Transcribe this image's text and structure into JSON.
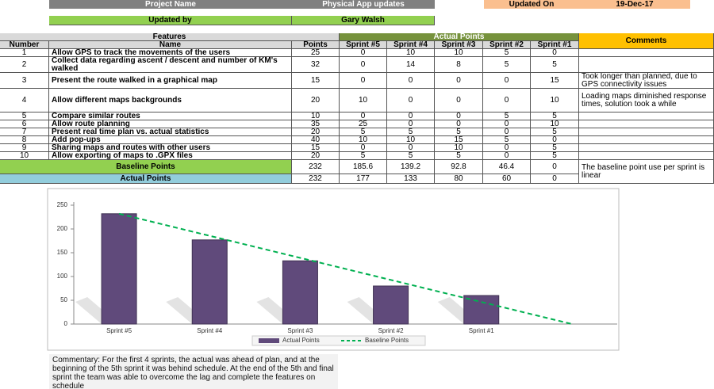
{
  "header": {
    "project_label": "Project Name",
    "project_name": "Physical App updates",
    "updated_on_label": "Updated On",
    "updated_on": "19-Dec-17",
    "updated_by_label": "Updated by",
    "updated_by": "Gary Walsh"
  },
  "table": {
    "group_headers": {
      "features": "Features",
      "actual": "Actual Points",
      "comments": "Comments"
    },
    "columns": [
      "Number",
      "Name",
      "Points",
      "Sprint #5",
      "Sprint #4",
      "Sprint #3",
      "Sprint #2",
      "Sprint #1"
    ],
    "rows": [
      {
        "number": 1,
        "name": "Allow GPS to track the movements of the users",
        "points": 25,
        "sprints": [
          0,
          10,
          10,
          5,
          0
        ]
      },
      {
        "number": 2,
        "name": "Collect data regarding ascent / descent and number of KM's walked",
        "points": 32,
        "sprints": [
          0,
          14,
          8,
          5,
          5
        ]
      },
      {
        "number": 3,
        "name": "Present the route walked in a graphical map",
        "points": 15,
        "sprints": [
          0,
          0,
          0,
          0,
          15
        ],
        "comment": "Took longer than planned, due to GPS connectivity issues"
      },
      {
        "number": 4,
        "name": "Allow different maps backgrounds",
        "points": 20,
        "sprints": [
          10,
          0,
          0,
          0,
          10
        ],
        "comment": "Loading maps diminished response times, solution took a while"
      },
      {
        "number": 5,
        "name": "Compare similar routes",
        "points": 10,
        "sprints": [
          0,
          0,
          0,
          5,
          5
        ]
      },
      {
        "number": 6,
        "name": "Allow route planning",
        "points": 35,
        "sprints": [
          25,
          0,
          0,
          0,
          10
        ]
      },
      {
        "number": 7,
        "name": "Present real time plan vs. actual statistics",
        "points": 20,
        "sprints": [
          5,
          5,
          5,
          0,
          5
        ]
      },
      {
        "number": 8,
        "name": "Add pop-ups",
        "points": 40,
        "sprints": [
          10,
          10,
          15,
          5,
          0
        ]
      },
      {
        "number": 9,
        "name": "Sharing maps and routes with other users",
        "points": 15,
        "sprints": [
          0,
          0,
          10,
          0,
          5
        ]
      },
      {
        "number": 10,
        "name": "Allow exporting of maps to .GPX files",
        "points": 20,
        "sprints": [
          5,
          5,
          5,
          0,
          5
        ]
      }
    ],
    "summary": [
      {
        "label": "Baseline Points",
        "points": 232,
        "sprints": [
          185.6,
          139.2,
          92.8,
          46.4,
          0
        ],
        "comment": "The baseline point use per sprint is linear"
      },
      {
        "label": "Actual Points",
        "points": 232,
        "sprints": [
          177,
          133,
          80,
          60,
          0
        ]
      }
    ]
  },
  "chart_data": {
    "type": "bar",
    "categories": [
      "Sprint #5",
      "Sprint #4",
      "Sprint #3",
      "Sprint #2",
      "Sprint #1",
      null
    ],
    "series": [
      {
        "name": "Actual Points",
        "color": "#604a7b",
        "values": [
          232,
          177,
          133,
          80,
          60,
          null
        ]
      },
      {
        "name": "Baseline Points",
        "color": "#00b050",
        "type": "line",
        "dashed": true,
        "values": [
          232,
          185.6,
          139.2,
          92.8,
          46.4,
          0
        ]
      }
    ],
    "ylim": [
      0,
      250
    ],
    "yticks": [
      0,
      50,
      100,
      150,
      200,
      250
    ],
    "grid": false,
    "legend": "bottom"
  },
  "commentary": "Commentary: For the first 4 sprints, the actual was ahead of plan, and at the beginning of the 5th sprint it was behind schedule. At the end of the 5th and final sprint the team was able to overcome the lag and complete the features on schedule"
}
